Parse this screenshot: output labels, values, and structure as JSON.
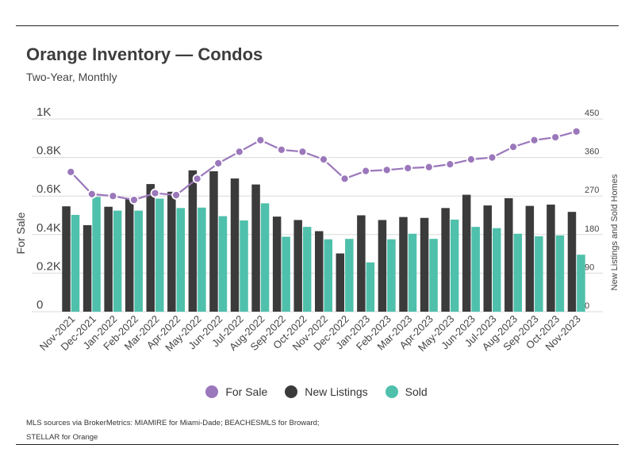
{
  "header": {
    "title": "Orange Inventory — Condos",
    "subtitle": "Two-Year, Monthly"
  },
  "footer": {
    "source_line1": "MLS sources via BrokerMetrics: MIAMIRE for Miami-Dade; BEACHESMLS for Broward;",
    "source_line2": "STELLAR for Orange"
  },
  "colors": {
    "for_sale": "#9b77bb",
    "new_listings": "#3b3b3b",
    "sold": "#4fc0ab",
    "grid": "#d9d9d9",
    "axis_text": "#444444"
  },
  "chart_data": {
    "type": "bar",
    "combo": "bars + line",
    "categories": [
      "Nov-2021",
      "Dec-2021",
      "Jan-2022",
      "Feb-2022",
      "Mar-2022",
      "Apr-2022",
      "May-2022",
      "Jun-2022",
      "Jul-2022",
      "Aug-2022",
      "Sep-2022",
      "Oct-2022",
      "Nov-2022",
      "Dec-2022",
      "Jan-2023",
      "Feb-2023",
      "Mar-2023",
      "Apr-2023",
      "May-2023",
      "Jun-2023",
      "Jul-2023",
      "Aug-2023",
      "Sep-2023",
      "Oct-2023",
      "Nov-2023"
    ],
    "series": [
      {
        "name": "For Sale",
        "type": "line",
        "axis": "left",
        "values": [
          725,
          610,
          600,
          580,
          615,
          605,
          690,
          770,
          830,
          890,
          840,
          830,
          790,
          690,
          730,
          735,
          745,
          750,
          765,
          790,
          800,
          855,
          890,
          905,
          935
        ]
      },
      {
        "name": "New Listings",
        "type": "bar",
        "axis": "right",
        "values": [
          246,
          202,
          245,
          265,
          298,
          280,
          330,
          328,
          311,
          297,
          222,
          214,
          188,
          136,
          225,
          214,
          221,
          219,
          242,
          273,
          248,
          265,
          247,
          250,
          233
        ]
      },
      {
        "name": "Sold",
        "type": "bar",
        "axis": "right",
        "values": [
          226,
          268,
          236,
          236,
          264,
          242,
          243,
          223,
          213,
          253,
          175,
          198,
          169,
          170,
          115,
          169,
          182,
          170,
          215,
          198,
          195,
          182,
          176,
          178,
          133
        ]
      }
    ],
    "y_left": {
      "label": "For Sale",
      "range": [
        0,
        1000
      ],
      "ticks": [
        "0",
        "0.2K",
        "0.4K",
        "0.6K",
        "0.8K",
        "1K"
      ]
    },
    "y_right": {
      "label": "New Listings and Sold Homes",
      "range": [
        0,
        450
      ],
      "ticks": [
        "0",
        "90",
        "180",
        "270",
        "360",
        "450"
      ]
    },
    "grid": true,
    "legend_position": "bottom"
  }
}
